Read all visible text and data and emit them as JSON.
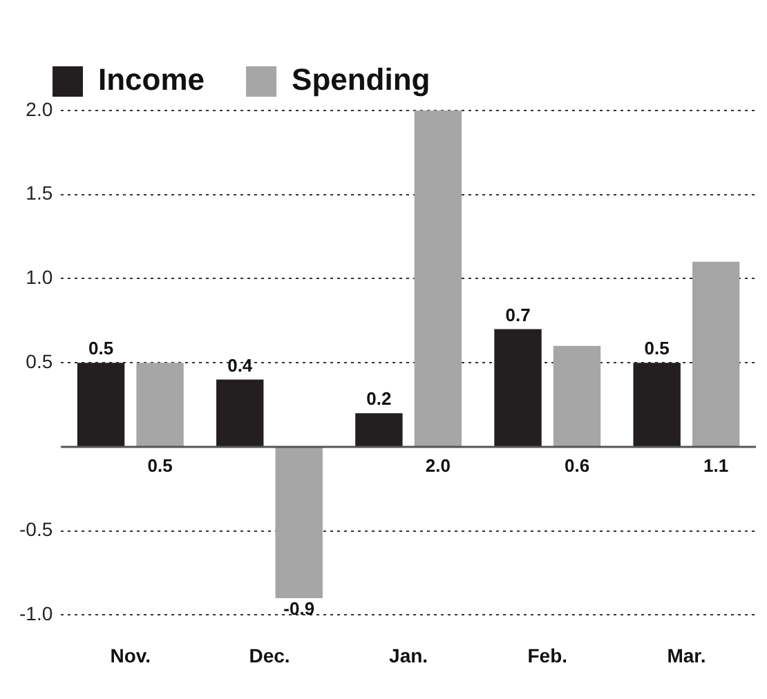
{
  "chart_data": {
    "type": "bar",
    "categories": [
      "Nov.",
      "Dec.",
      "Jan.",
      "Feb.",
      "Mar."
    ],
    "series": [
      {
        "name": "Income",
        "color": "#231f20",
        "values": [
          0.5,
          0.4,
          0.2,
          0.7,
          0.5
        ],
        "value_labels": [
          "0.5",
          "0.4",
          "0.2",
          "0.7",
          "0.5"
        ]
      },
      {
        "name": "Spending",
        "color": "#a6a6a6",
        "values": [
          0.5,
          -0.9,
          2.0,
          0.6,
          1.1
        ],
        "value_labels": [
          "0.5",
          "-0.9",
          "2.0",
          "0.6",
          "1.1"
        ]
      }
    ],
    "ylim": [
      -1,
      2
    ],
    "yticks": [
      {
        "value": -1,
        "label": "-1.0"
      },
      {
        "value": -0.5,
        "label": "-0.5"
      },
      {
        "value": 0.5,
        "label": "0.5"
      },
      {
        "value": 1,
        "label": "1.0"
      },
      {
        "value": 1.5,
        "label": "1.5"
      },
      {
        "value": 2,
        "label": "2.0"
      }
    ],
    "grid": "y",
    "legend": "top left"
  }
}
